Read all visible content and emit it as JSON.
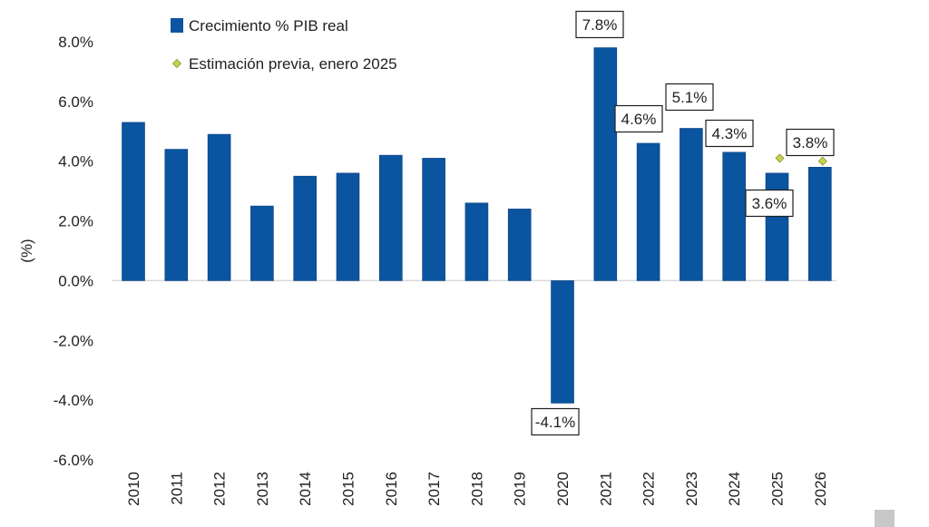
{
  "chart_data": {
    "type": "bar",
    "categories": [
      "2010",
      "2011",
      "2012",
      "2013",
      "2014",
      "2015",
      "2016",
      "2017",
      "2018",
      "2019",
      "2020",
      "2021",
      "2022",
      "2023",
      "2024",
      "2025",
      "2026"
    ],
    "series": [
      {
        "name": "Crecimiento % PIB real",
        "values": [
          5.3,
          4.4,
          4.9,
          2.5,
          3.5,
          3.6,
          4.2,
          4.1,
          2.6,
          2.4,
          -4.1,
          7.8,
          4.6,
          5.1,
          4.3,
          3.6,
          3.8
        ],
        "color": "#0b54a0"
      },
      {
        "name": "Estimación previa, enero 2025",
        "type": "scatter",
        "categories": [
          "2025",
          "2026"
        ],
        "values": [
          4.1,
          4.0
        ],
        "color": "#c6d24e"
      }
    ],
    "data_labels": [
      {
        "category": "2020",
        "text": "-4.1%"
      },
      {
        "category": "2021",
        "text": "7.8%"
      },
      {
        "category": "2022",
        "text": "4.6%"
      },
      {
        "category": "2023",
        "text": "5.1%"
      },
      {
        "category": "2024",
        "text": "4.3%"
      },
      {
        "category": "2025",
        "text": "3.6%"
      },
      {
        "category": "2026",
        "text": "3.8%"
      }
    ],
    "ylabel": "(%)",
    "xlabel": "",
    "ylim": [
      -6.0,
      8.0
    ],
    "yticks": [
      "8.0%",
      "6.0%",
      "4.0%",
      "2.0%",
      "0.0%",
      "-2.0%",
      "-4.0%",
      "-6.0%"
    ],
    "legend_position": "top-left",
    "grid": false
  }
}
